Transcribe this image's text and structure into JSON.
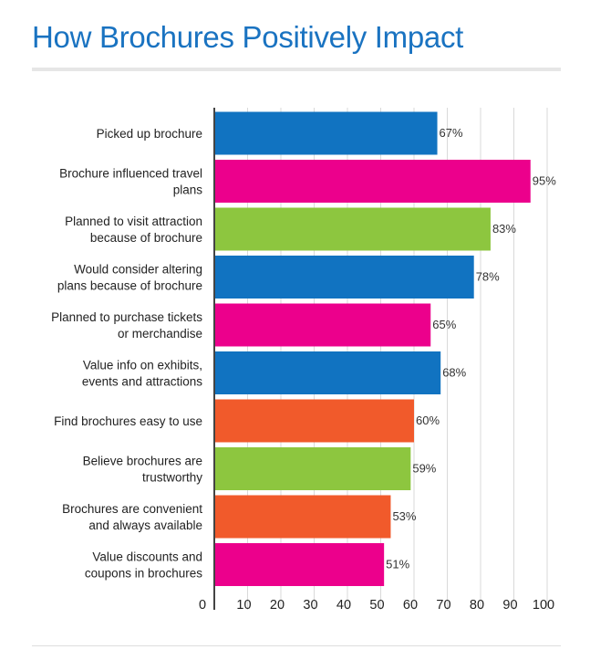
{
  "title": "How Brochures Positively Impact",
  "chart_data": {
    "type": "bar",
    "orientation": "horizontal",
    "categories": [
      [
        "Picked up brochure"
      ],
      [
        "Brochure influenced travel",
        "plans"
      ],
      [
        "Planned to visit attraction",
        "because of brochure"
      ],
      [
        "Would consider altering",
        "plans because of brochure"
      ],
      [
        "Planned to purchase tickets",
        "or merchandise"
      ],
      [
        "Value info on exhibits,",
        "events and attractions"
      ],
      [
        "Find brochures easy to use"
      ],
      [
        "Believe brochures are",
        "trustworthy"
      ],
      [
        "Brochures are convenient",
        "and always available"
      ],
      [
        "Value discounts and",
        "coupons in brochures"
      ]
    ],
    "values": [
      67,
      95,
      83,
      78,
      65,
      68,
      60,
      59,
      53,
      51
    ],
    "data_labels": [
      "67%",
      "95%",
      "83%",
      "78%",
      "65%",
      "68%",
      "60%",
      "59%",
      "53%",
      "51%"
    ],
    "bar_colors": [
      "#1173c1",
      "#ec008c",
      "#8dc63f",
      "#1173c1",
      "#ec008c",
      "#1173c1",
      "#f15a2b",
      "#8dc63f",
      "#f15a2b",
      "#ec008c"
    ],
    "xlim": [
      0,
      100
    ],
    "xticks": [
      0,
      10,
      20,
      30,
      40,
      50,
      60,
      70,
      80,
      90,
      100
    ],
    "grid": true,
    "legend": "none"
  }
}
